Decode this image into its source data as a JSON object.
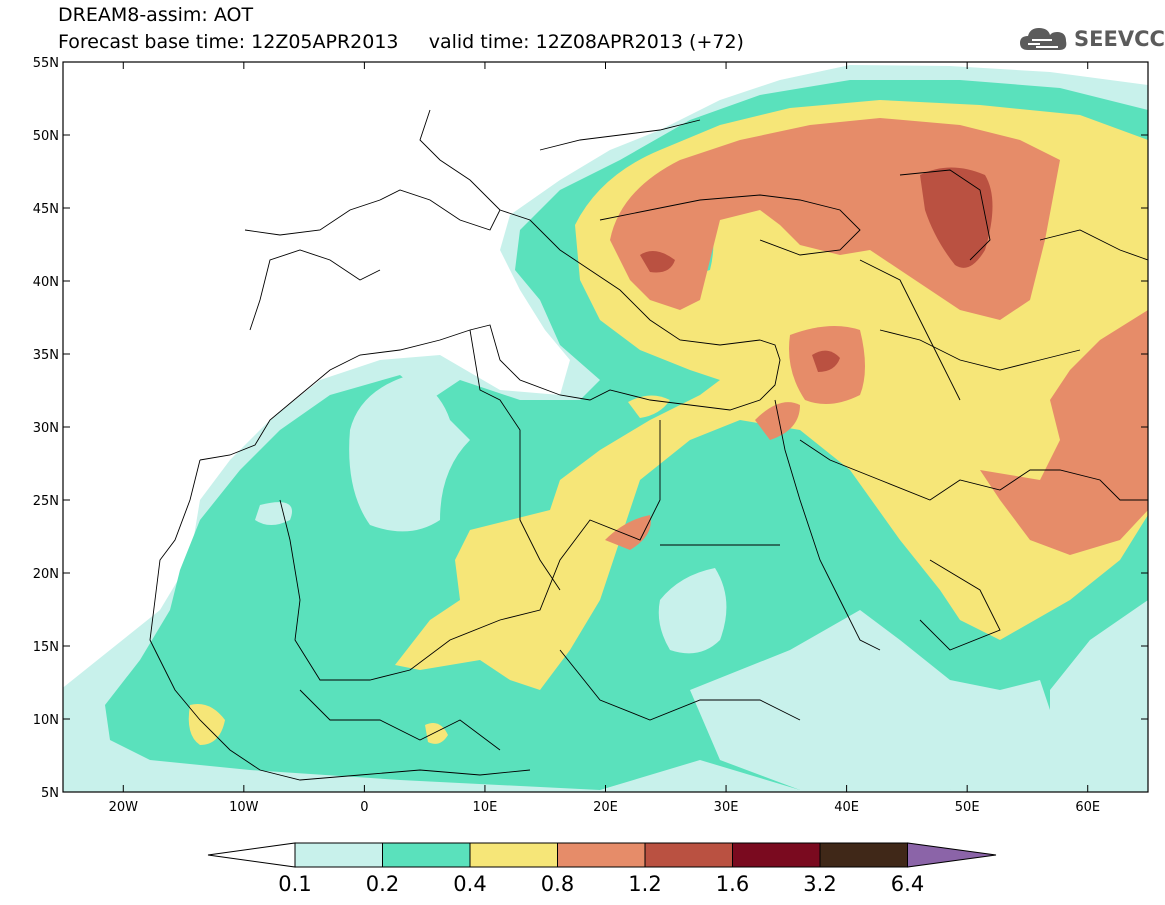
{
  "header": {
    "title_line1": "DREAM8-assim: AOT",
    "title_line2": "Forecast base time: 12Z05APR2013     valid time: 12Z08APR2013 (+72)",
    "logo_text": "SEEVCCC"
  },
  "map": {
    "lat_labels": [
      "55N",
      "50N",
      "45N",
      "40N",
      "35N",
      "30N",
      "25N",
      "20N",
      "15N",
      "10N",
      "5N"
    ],
    "lon_labels": [
      "20W",
      "10W",
      "0",
      "10E",
      "20E",
      "30E",
      "40E",
      "50E",
      "60E"
    ],
    "lat_values": [
      55,
      50,
      45,
      40,
      35,
      30,
      25,
      20,
      15,
      10,
      5
    ],
    "lon_values": [
      -20,
      -10,
      0,
      10,
      20,
      30,
      40,
      50,
      60
    ],
    "lon_range": [
      -25,
      65
    ],
    "lat_range": [
      5,
      55
    ]
  },
  "legend": {
    "labels": [
      "0.1",
      "0.2",
      "0.4",
      "0.8",
      "1.2",
      "1.6",
      "3.2",
      "6.4"
    ],
    "colors": [
      "#ffffff",
      "#c8f1eb",
      "#5ae1bc",
      "#f6e678",
      "#e68c69",
      "#ba5141",
      "#7a0a1f",
      "#402818",
      "#8b64a8"
    ]
  },
  "colors": {
    "c01": "#c8f1eb",
    "c02": "#5ae1bc",
    "c04": "#f6e678",
    "c08": "#e68c69",
    "c12": "#ba5141"
  }
}
